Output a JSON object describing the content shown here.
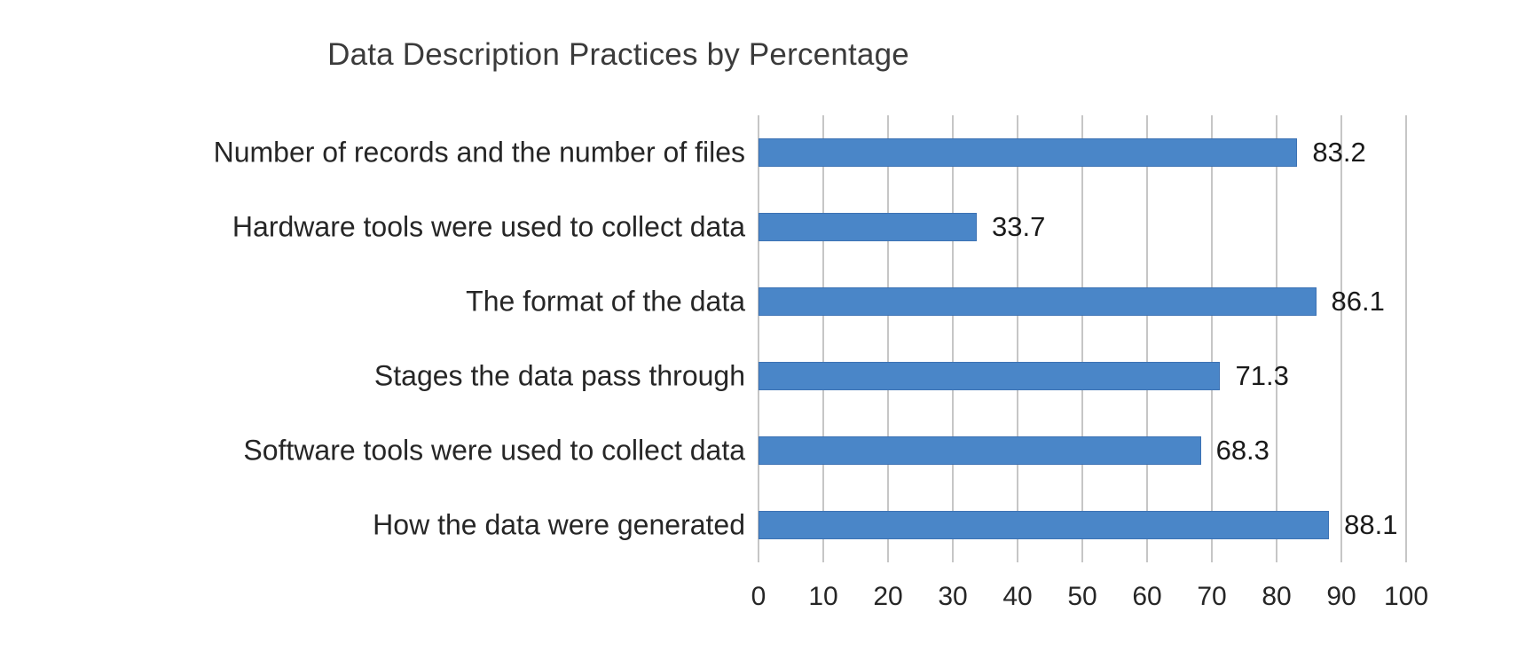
{
  "chart_data": {
    "type": "bar",
    "orientation": "horizontal",
    "title": "Data Description Practices by Percentage",
    "categories": [
      "Number of records and the number of files",
      "Hardware tools were used to collect data",
      "The format of the data",
      "Stages the data pass through",
      "Software tools were used to collect data",
      "How the data were generated"
    ],
    "values": [
      83.2,
      33.7,
      86.1,
      71.3,
      68.3,
      88.1
    ],
    "data_labels": [
      "83.2",
      "33.7",
      "86.1",
      "71.3",
      "68.3",
      "88.1"
    ],
    "xlabel": "",
    "ylabel": "",
    "xlim": [
      0,
      100
    ],
    "x_tick_labels": [
      "0",
      "10",
      "20",
      "30",
      "40",
      "50",
      "60",
      "70",
      "80",
      "90",
      "100"
    ],
    "grid": "vertical gridlines on",
    "legend": "none",
    "colors": {
      "bar_fill": "#4a86c8",
      "bar_border": "#3c72b4",
      "gridline": "#c6c6c6",
      "text": "#262626",
      "title_text": "#3b3b3b",
      "background": "#ffffff"
    }
  }
}
